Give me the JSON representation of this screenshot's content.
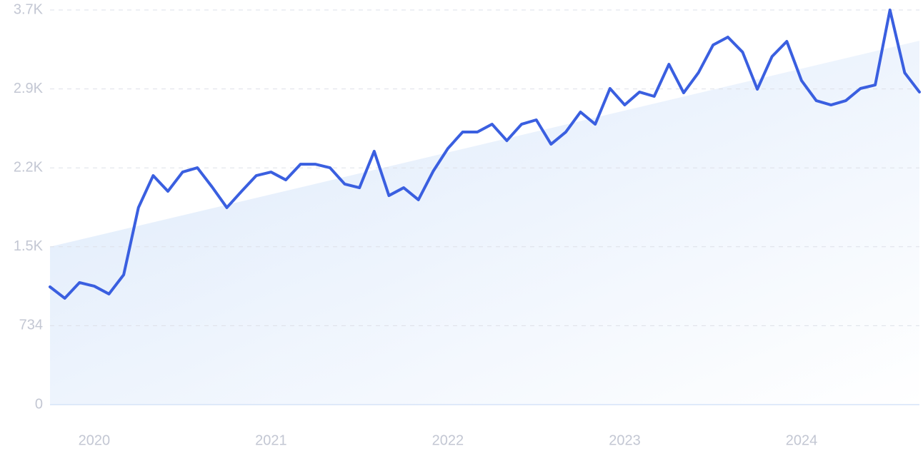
{
  "chart_data": {
    "type": "line",
    "categories": [
      null,
      null,
      null,
      "2020",
      null,
      null,
      null,
      null,
      null,
      null,
      null,
      null,
      null,
      null,
      null,
      "2021",
      null,
      null,
      null,
      null,
      null,
      null,
      null,
      null,
      null,
      null,
      null,
      "2022",
      null,
      null,
      null,
      null,
      null,
      null,
      null,
      null,
      null,
      null,
      null,
      "2023",
      null,
      null,
      null,
      null,
      null,
      null,
      null,
      null,
      null,
      null,
      null,
      "2024",
      null,
      null,
      null,
      null,
      null,
      null,
      null,
      null
    ],
    "series": [
      {
        "color": "#3a5fe0",
        "values": [
          1095,
          989,
          1135,
          1102,
          1029,
          1208,
          1832,
          2130,
          1984,
          2163,
          2203,
          2024,
          1832,
          1984,
          2130,
          2163,
          2090,
          2236,
          2236,
          2203,
          2051,
          2017,
          2356,
          1944,
          2017,
          1905,
          2170,
          2382,
          2535,
          2535,
          2608,
          2455,
          2608,
          2648,
          2422,
          2535,
          2721,
          2608,
          2940,
          2787,
          2907,
          2867,
          3165,
          2900,
          3086,
          3345,
          3418,
          3278,
          2933,
          3238,
          3378,
          3013,
          2827,
          2787,
          2827,
          2940,
          2973,
          3670,
          3086,
          2907
        ]
      }
    ],
    "trend": [
      1468,
      3384
    ],
    "trend_color": "#dce9fb",
    "ylim": [
      0,
      3670
    ],
    "yticks": [
      0,
      {
        "value": 734,
        "label": "734"
      },
      {
        "value": 1468,
        "label": "1.5K"
      },
      {
        "value": 2202,
        "label": "2.2K"
      },
      {
        "value": 2936,
        "label": "2.9K"
      },
      {
        "value": 3670,
        "label": "3.7K"
      }
    ],
    "grid": true
  }
}
